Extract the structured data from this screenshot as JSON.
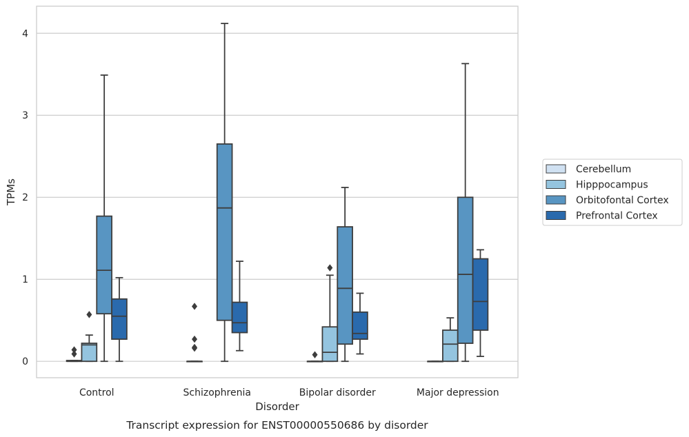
{
  "caption": "Transcript expression for ENST00000550686 by disorder",
  "chart_data": {
    "type": "box",
    "title": "",
    "xlabel": "Disorder",
    "ylabel": "TPMs",
    "ylim": [
      -0.2,
      4.33
    ],
    "yticks": [
      0,
      1,
      2,
      3,
      4
    ],
    "grid": "horizontal",
    "legend_position": "right",
    "categories": [
      "Control",
      "Schizophrenia",
      "Bipolar disorder",
      "Major depression"
    ],
    "series": [
      {
        "name": "Cerebellum",
        "color": "#d0e1f2",
        "boxes": [
          {
            "whisker_low": 0,
            "q1": 0,
            "median": 0,
            "q3": 0.01,
            "whisker_high": 0.01,
            "fliers": [
              0.09,
              0.14
            ]
          },
          {
            "whisker_low": 0,
            "q1": 0,
            "median": 0,
            "q3": 0,
            "whisker_high": 0,
            "fliers": [
              0.16,
              0.17,
              0.27,
              0.67
            ]
          },
          {
            "whisker_low": 0,
            "q1": 0,
            "median": 0,
            "q3": 0,
            "whisker_high": 0,
            "fliers": [
              0.08
            ]
          },
          {
            "whisker_low": 0,
            "q1": 0,
            "median": 0,
            "q3": 0,
            "whisker_high": 0,
            "fliers": []
          }
        ]
      },
      {
        "name": "Hipppocampus",
        "color": "#94c4df",
        "boxes": [
          {
            "whisker_low": 0,
            "q1": 0,
            "median": 0.2,
            "q3": 0.22,
            "whisker_high": 0.32,
            "fliers": [
              0.57
            ]
          },
          null,
          {
            "whisker_low": 0,
            "q1": 0,
            "median": 0.11,
            "q3": 0.42,
            "whisker_high": 1.05,
            "fliers": [
              1.14
            ]
          },
          {
            "whisker_low": 0,
            "q1": 0,
            "median": 0.21,
            "q3": 0.38,
            "whisker_high": 0.53,
            "fliers": []
          }
        ]
      },
      {
        "name": "Orbitofontal Cortex",
        "color": "#5895c2",
        "boxes": [
          {
            "whisker_low": 0,
            "q1": 0.58,
            "median": 1.11,
            "q3": 1.77,
            "whisker_high": 3.49,
            "fliers": []
          },
          {
            "whisker_low": 0,
            "q1": 0.5,
            "median": 1.87,
            "q3": 2.65,
            "whisker_high": 4.12,
            "fliers": []
          },
          {
            "whisker_low": 0,
            "q1": 0.21,
            "median": 0.89,
            "q3": 1.64,
            "whisker_high": 2.12,
            "fliers": []
          },
          {
            "whisker_low": 0,
            "q1": 0.22,
            "median": 1.06,
            "q3": 2.0,
            "whisker_high": 3.63,
            "fliers": []
          }
        ]
      },
      {
        "name": "Prefrontal Cortex",
        "color": "#2a6aad",
        "boxes": [
          {
            "whisker_low": 0,
            "q1": 0.27,
            "median": 0.55,
            "q3": 0.76,
            "whisker_high": 1.02,
            "fliers": []
          },
          {
            "whisker_low": 0.13,
            "q1": 0.35,
            "median": 0.47,
            "q3": 0.72,
            "whisker_high": 1.22,
            "fliers": []
          },
          {
            "whisker_low": 0.09,
            "q1": 0.27,
            "median": 0.34,
            "q3": 0.6,
            "whisker_high": 0.83,
            "fliers": []
          },
          {
            "whisker_low": 0.06,
            "q1": 0.38,
            "median": 0.73,
            "q3": 1.25,
            "whisker_high": 1.36,
            "fliers": []
          }
        ]
      }
    ]
  }
}
